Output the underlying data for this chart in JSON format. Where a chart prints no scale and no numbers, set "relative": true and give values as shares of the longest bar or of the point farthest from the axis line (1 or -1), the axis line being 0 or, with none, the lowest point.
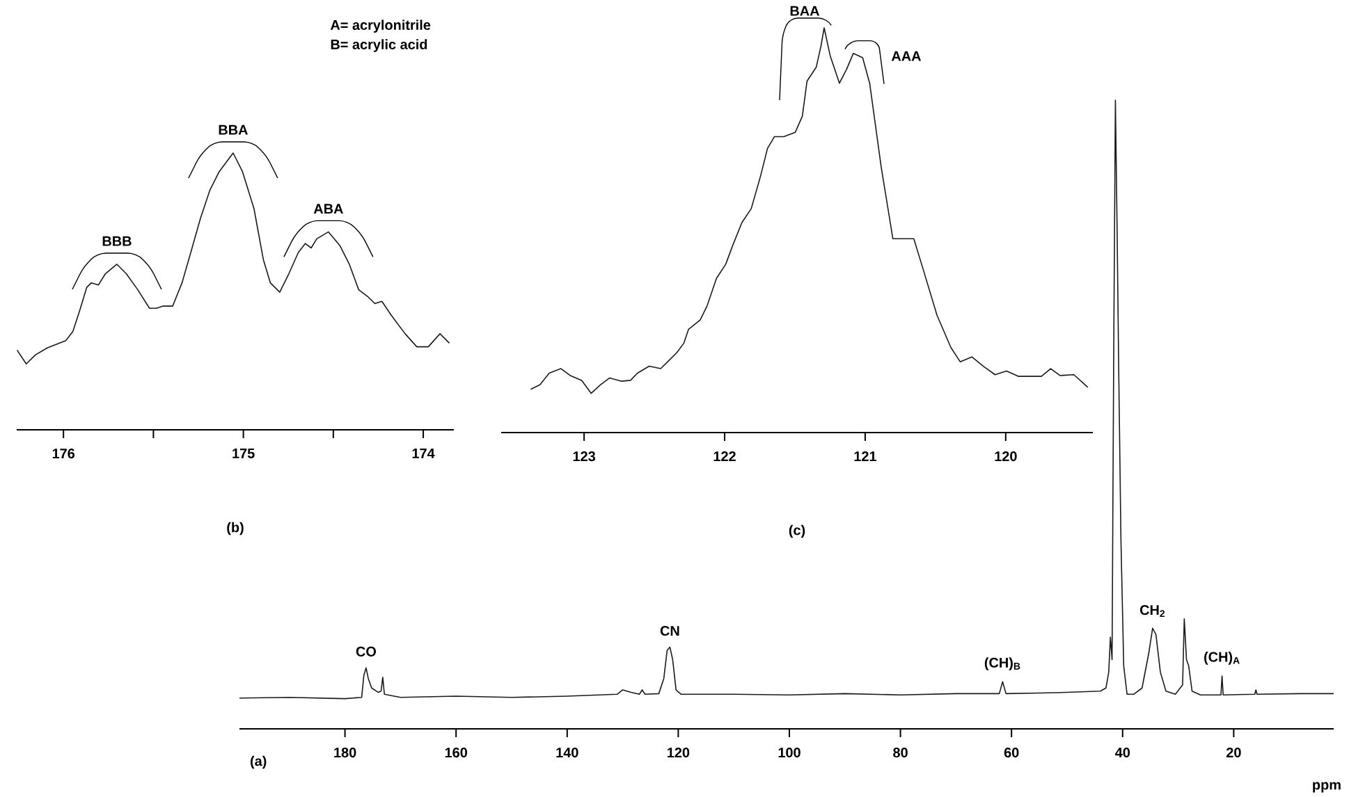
{
  "chart_data": [
    {
      "type": "line",
      "title": "(b)",
      "relative": true,
      "color": "#1a1a1a",
      "xlim": [
        176.26,
        173.83
      ],
      "xticks": [
        176,
        {
          "value": 175.5,
          "label": null
        },
        175,
        {
          "value": 174.5,
          "label": null
        },
        174
      ],
      "x": [
        176.258,
        176.207,
        176.155,
        176.09,
        175.987,
        175.948,
        175.91,
        175.871,
        175.845,
        175.806,
        175.767,
        175.703,
        175.651,
        175.587,
        175.522,
        175.483,
        175.445,
        175.393,
        175.341,
        175.289,
        175.238,
        175.186,
        175.134,
        175.057,
        175.005,
        174.941,
        174.889,
        174.85,
        174.798,
        174.747,
        174.695,
        174.656,
        174.623,
        174.592,
        174.527,
        174.463,
        174.411,
        174.359,
        174.308,
        174.269,
        174.23,
        174.178,
        174.101,
        174.036,
        173.972,
        173.907,
        173.855
      ],
      "values": [
        0.288,
        0.238,
        0.271,
        0.296,
        0.322,
        0.355,
        0.43,
        0.514,
        0.531,
        0.523,
        0.564,
        0.598,
        0.564,
        0.506,
        0.439,
        0.439,
        0.447,
        0.447,
        0.531,
        0.648,
        0.765,
        0.866,
        0.933,
        1.0,
        0.933,
        0.799,
        0.615,
        0.531,
        0.497,
        0.564,
        0.64,
        0.673,
        0.657,
        0.69,
        0.715,
        0.665,
        0.598,
        0.506,
        0.481,
        0.456,
        0.464,
        0.414,
        0.347,
        0.3,
        0.3,
        0.347,
        0.313
      ],
      "annotations": [
        {
          "text": "BBB",
          "x": 175.703,
          "y": 0.598
        },
        {
          "text": "BBA",
          "x": 175.057,
          "y": 1.0
        },
        {
          "text": "ABA",
          "x": 174.527,
          "y": 0.715
        },
        "A= acrylonitrile",
        "B= acrylic acid"
      ]
    },
    {
      "type": "line",
      "title": "(c)",
      "relative": true,
      "color": "#1a1a1a",
      "xlim": [
        123.59,
        119.38
      ],
      "xticks": [
        123,
        122,
        121,
        120
      ],
      "x": [
        123.38,
        123.314,
        123.248,
        123.165,
        123.099,
        123.017,
        122.95,
        122.884,
        122.818,
        122.736,
        122.67,
        122.62,
        122.537,
        122.455,
        122.405,
        122.339,
        122.29,
        122.257,
        122.174,
        122.125,
        122.058,
        121.992,
        121.943,
        121.877,
        121.811,
        121.745,
        121.695,
        121.646,
        121.579,
        121.497,
        121.447,
        121.414,
        121.348,
        121.315,
        121.292,
        121.249,
        121.183,
        121.133,
        121.084,
        121.018,
        120.968,
        120.886,
        120.803,
        120.737,
        120.654,
        120.588,
        120.489,
        120.39,
        120.324,
        120.241,
        120.159,
        120.076,
        119.994,
        119.911,
        119.829,
        119.746,
        119.68,
        119.614,
        119.515,
        119.416
      ],
      "values": [
        0.107,
        0.118,
        0.147,
        0.158,
        0.141,
        0.129,
        0.097,
        0.118,
        0.135,
        0.127,
        0.129,
        0.147,
        0.164,
        0.158,
        0.175,
        0.198,
        0.221,
        0.255,
        0.278,
        0.313,
        0.381,
        0.416,
        0.462,
        0.519,
        0.553,
        0.633,
        0.702,
        0.731,
        0.731,
        0.742,
        0.782,
        0.868,
        0.903,
        0.954,
        1.0,
        0.931,
        0.863,
        0.897,
        0.937,
        0.926,
        0.863,
        0.656,
        0.479,
        0.479,
        0.479,
        0.404,
        0.29,
        0.21,
        0.175,
        0.187,
        0.164,
        0.143,
        0.152,
        0.139,
        0.139,
        0.139,
        0.158,
        0.141,
        0.143,
        0.112
      ],
      "annotations": [
        {
          "text": "BAA",
          "x": 121.292,
          "y": 1.0
        },
        {
          "text": "AAA",
          "x": 121.084,
          "y": 0.937
        }
      ]
    },
    {
      "type": "line",
      "title": "(a)",
      "xlabel": "ppm",
      "relative": true,
      "color": "#1a1a1a",
      "xlim": [
        199,
        2
      ],
      "xticks": [
        180,
        160,
        140,
        120,
        100,
        80,
        60,
        40,
        20
      ],
      "x": [
        199,
        190,
        180,
        177,
        176.6,
        176.2,
        175.8,
        175.2,
        174,
        173.5,
        173.2,
        172.9,
        170,
        160,
        150,
        140,
        131,
        130,
        128.5,
        127,
        126.5,
        126,
        123.5,
        122.6,
        122,
        121.5,
        121,
        120.4,
        119.5,
        110,
        100,
        90,
        80,
        70,
        62.2,
        61.6,
        61,
        55,
        50,
        44,
        43,
        42.5,
        42.2,
        41.9,
        41.6,
        41.3,
        41.0,
        40.7,
        40.3,
        39.8,
        39.2,
        38,
        36.5,
        35.3,
        34.6,
        34.0,
        33.2,
        32.2,
        30.5,
        29.2,
        28.9,
        28.5,
        28.1,
        27.5,
        26,
        22.3,
        22.1,
        21.9,
        16.2,
        16,
        15.8,
        8,
        2
      ],
      "values": [
        0.049,
        0.05,
        0.048,
        0.05,
        0.085,
        0.097,
        0.08,
        0.065,
        0.058,
        0.06,
        0.082,
        0.055,
        0.05,
        0.052,
        0.05,
        0.052,
        0.055,
        0.062,
        0.058,
        0.055,
        0.062,
        0.055,
        0.056,
        0.08,
        0.125,
        0.13,
        0.11,
        0.062,
        0.055,
        0.055,
        0.054,
        0.056,
        0.054,
        0.056,
        0.056,
        0.075,
        0.056,
        0.057,
        0.058,
        0.06,
        0.065,
        0.09,
        0.146,
        0.11,
        0.6,
        1.0,
        0.8,
        0.57,
        0.3,
        0.1,
        0.055,
        0.055,
        0.065,
        0.12,
        0.16,
        0.15,
        0.09,
        0.06,
        0.055,
        0.07,
        0.175,
        0.11,
        0.1,
        0.06,
        0.054,
        0.054,
        0.084,
        0.054,
        0.055,
        0.062,
        0.055,
        0.056,
        0.056
      ],
      "annotations": [
        {
          "text": "CO",
          "x": 176.2,
          "y": 0.097
        },
        {
          "text": "CN",
          "x": 121.5,
          "y": 0.13
        },
        {
          "text": "(CH)$_{B}$",
          "x": 61.6,
          "y": 0.075
        },
        {
          "text": "CH$_{2}$",
          "x": 34.6,
          "y": 0.16
        },
        {
          "text": "(CH)$_{A}$",
          "x": 22.1,
          "y": 0.084
        }
      ]
    }
  ]
}
